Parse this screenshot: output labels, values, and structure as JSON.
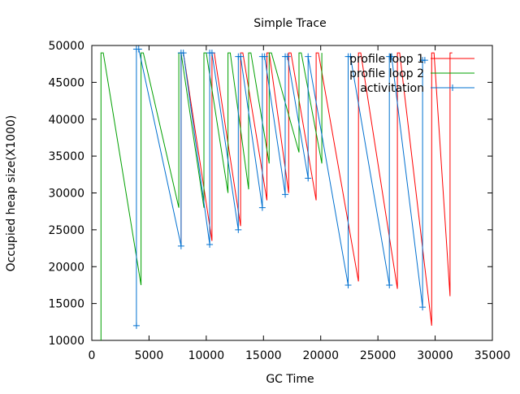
{
  "chart_data": {
    "type": "line",
    "title": "Simple Trace",
    "xlabel": "GC Time",
    "ylabel": "Occupied heap size(X1000)",
    "xlim": [
      0,
      35000
    ],
    "ylim": [
      10000,
      50000
    ],
    "x_ticks": [
      0,
      5000,
      10000,
      15000,
      20000,
      25000,
      30000,
      35000
    ],
    "y_ticks": [
      10000,
      15000,
      20000,
      25000,
      30000,
      35000,
      40000,
      45000,
      50000
    ],
    "grid": false,
    "legend_position": "top-right",
    "series": [
      {
        "name": "profile loop 1",
        "color": "#ff0000",
        "marker": "none",
        "points": [
          [
            7800,
            23000
          ],
          [
            7800,
            49000
          ],
          [
            8000,
            49000
          ],
          [
            10500,
            23500
          ],
          [
            10500,
            49000
          ],
          [
            10700,
            49000
          ],
          [
            13000,
            25500
          ],
          [
            13000,
            49000
          ],
          [
            13200,
            49000
          ],
          [
            15300,
            29000
          ],
          [
            15300,
            49000
          ],
          [
            15500,
            49000
          ],
          [
            17200,
            30000
          ],
          [
            17200,
            49000
          ],
          [
            17400,
            49000
          ],
          [
            19600,
            29000
          ],
          [
            19600,
            49000
          ],
          [
            19800,
            49000
          ],
          [
            23300,
            18000
          ],
          [
            23300,
            49000
          ],
          [
            23500,
            49000
          ],
          [
            26700,
            17000
          ],
          [
            26700,
            49000
          ],
          [
            26900,
            49000
          ],
          [
            29700,
            12000
          ],
          [
            29700,
            49000
          ],
          [
            29900,
            49000
          ],
          [
            31300,
            16000
          ],
          [
            31300,
            49000
          ],
          [
            31500,
            49000
          ]
        ]
      },
      {
        "name": "profile loop 2",
        "color": "#00a000",
        "marker": "none",
        "points": [
          [
            800,
            10000
          ],
          [
            800,
            49000
          ],
          [
            1000,
            49000
          ],
          [
            4300,
            17500
          ],
          [
            4300,
            49000
          ],
          [
            4500,
            49000
          ],
          [
            7600,
            28000
          ],
          [
            7600,
            49000
          ],
          [
            7800,
            49000
          ],
          [
            9800,
            28000
          ],
          [
            9800,
            49000
          ],
          [
            10000,
            49000
          ],
          [
            11900,
            30000
          ],
          [
            11900,
            49000
          ],
          [
            12100,
            49000
          ],
          [
            13700,
            30500
          ],
          [
            13700,
            49000
          ],
          [
            13900,
            49000
          ],
          [
            15500,
            34000
          ],
          [
            15500,
            49000
          ],
          [
            15700,
            49000
          ],
          [
            18100,
            35500
          ],
          [
            18100,
            49000
          ],
          [
            18300,
            49000
          ],
          [
            20100,
            34000
          ],
          [
            20100,
            49000
          ]
        ]
      },
      {
        "name": "activitation",
        "color": "#0070d0",
        "marker": "plus",
        "points": [
          [
            3900,
            12000
          ],
          [
            3900,
            49500
          ],
          [
            4100,
            49500
          ],
          [
            7800,
            22800
          ],
          [
            7800,
            49000
          ],
          [
            8000,
            49000
          ],
          [
            10300,
            23000
          ],
          [
            10300,
            49000
          ],
          [
            10500,
            49000
          ],
          [
            12800,
            25000
          ],
          [
            12800,
            48500
          ],
          [
            13000,
            48500
          ],
          [
            14900,
            28000
          ],
          [
            14900,
            48500
          ],
          [
            15100,
            48500
          ],
          [
            16900,
            29800
          ],
          [
            16900,
            48500
          ],
          [
            17100,
            48500
          ],
          [
            18900,
            32000
          ],
          [
            18900,
            48500
          ],
          [
            22400,
            17500
          ],
          [
            22400,
            48500
          ],
          [
            22600,
            48500
          ],
          [
            26000,
            17500
          ],
          [
            26000,
            48500
          ],
          [
            26200,
            48500
          ],
          [
            28900,
            14500
          ],
          [
            28900,
            48000
          ],
          [
            29100,
            48000
          ]
        ]
      }
    ]
  }
}
